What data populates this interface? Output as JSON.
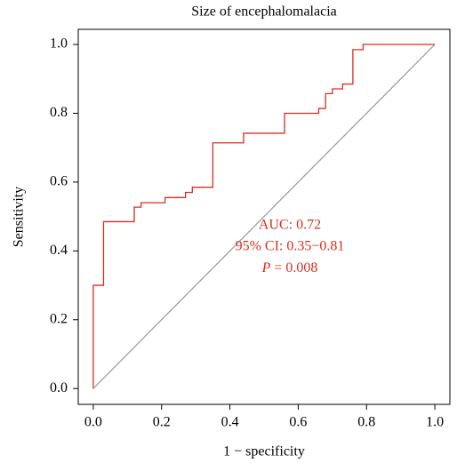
{
  "chart_data": {
    "type": "line",
    "title": "Size of encephalomalacia",
    "xlabel": "1 − specificity",
    "ylabel": "Sensitivity",
    "xlim": [
      -0.044,
      1.044
    ],
    "ylim": [
      -0.046,
      1.044
    ],
    "xticks": [
      {
        "value": 0,
        "label": "0.0"
      },
      {
        "value": 0.2,
        "label": "0.2"
      },
      {
        "value": 0.4,
        "label": "0.4"
      },
      {
        "value": 0.6,
        "label": "0.6"
      },
      {
        "value": 0.8,
        "label": "0.8"
      },
      {
        "value": 1,
        "label": "1.0"
      }
    ],
    "yticks": [
      {
        "value": 0,
        "label": "0.0"
      },
      {
        "value": 0.2,
        "label": "0.2"
      },
      {
        "value": 0.4,
        "label": "0.4"
      },
      {
        "value": 0.6,
        "label": "0.6"
      },
      {
        "value": 0.8,
        "label": "0.8"
      },
      {
        "value": 1,
        "label": "1.0"
      }
    ],
    "series": [
      {
        "color": "#d7301f",
        "x": [
          0,
          0,
          0.03,
          0.03,
          0.12,
          0.12,
          0.14,
          0.14,
          0.21,
          0.21,
          0.27,
          0.27,
          0.29,
          0.29,
          0.35,
          0.35,
          0.44,
          0.44,
          0.56,
          0.56,
          0.66,
          0.66,
          0.68,
          0.68,
          0.7,
          0.7,
          0.73,
          0.73,
          0.76,
          0.76,
          0.79,
          0.79,
          1
        ],
        "y": [
          0,
          0.3,
          0.3,
          0.485,
          0.485,
          0.527,
          0.527,
          0.54,
          0.54,
          0.555,
          0.555,
          0.57,
          0.57,
          0.585,
          0.585,
          0.714,
          0.714,
          0.742,
          0.742,
          0.8,
          0.8,
          0.814,
          0.814,
          0.857,
          0.857,
          0.871,
          0.871,
          0.885,
          0.885,
          0.985,
          0.985,
          1,
          1
        ]
      },
      {
        "color": "#a0a0a0",
        "x": [
          0,
          1
        ],
        "y": [
          0,
          1
        ]
      }
    ],
    "annotation_color": "#d7301f",
    "annotations": [
      "AUC: 0.72",
      "95% CI: 0.35−0.81"
    ],
    "p_annotation": {
      "symbol": "P",
      "text": " = 0.008"
    }
  }
}
